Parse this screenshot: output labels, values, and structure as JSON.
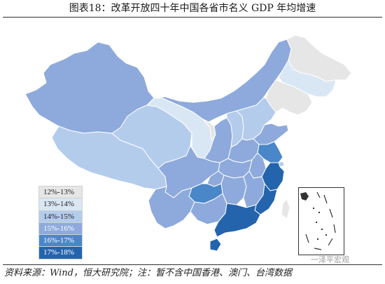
{
  "title": "图表18：改革开放四十年中国各省市名义 GDP 年均增速",
  "source": "资料来源：Wind，恒大研究院；注：暂不含中国香港、澳门、台湾数据",
  "watermark": "一泽平宏观",
  "legend": [
    {
      "label": "12%-13%",
      "color": "#e6e6e6",
      "text_color": "#222222"
    },
    {
      "label": "13%-14%",
      "color": "#d9e7f5",
      "text_color": "#222222"
    },
    {
      "label": "14%-15%",
      "color": "#b4ccec",
      "text_color": "#222222"
    },
    {
      "label": "15%-16%",
      "color": "#8eaadc",
      "text_color": "#ffffff"
    },
    {
      "label": "16%-17%",
      "color": "#4a87c8",
      "text_color": "#ffffff"
    },
    {
      "label": "17%-18%",
      "color": "#2464ad",
      "text_color": "#ffffff"
    }
  ],
  "colors": {
    "border": "#ffffff",
    "outline": "#6f8fb8",
    "no_data": "#e6e6e6"
  }
}
